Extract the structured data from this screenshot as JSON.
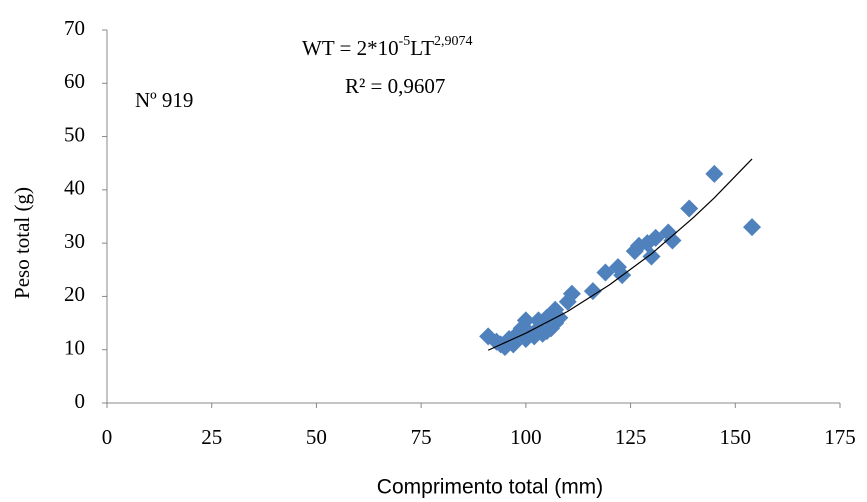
{
  "chart_data": {
    "type": "scatter",
    "annotations": {
      "equation": {
        "lhs": "WT = 2*10",
        "exp1": "-5",
        "mid": "LT",
        "exp2": "2,9074"
      },
      "r2": "R² = 0,9607",
      "sample": "Nº 919"
    },
    "xlabel": "Comprimento total (mm)",
    "ylabel": "Peso total (g)",
    "xlim": [
      0,
      175
    ],
    "xticks": [
      0,
      25,
      50,
      75,
      100,
      125,
      150,
      175
    ],
    "ylim": [
      0,
      70
    ],
    "yticks": [
      0,
      10,
      20,
      30,
      40,
      50,
      60,
      70
    ],
    "grid": false,
    "series": [
      {
        "color": "#4f81bd",
        "x": [
          91,
          93,
          94,
          95,
          96,
          97,
          98,
          99,
          100,
          100,
          101,
          102,
          103,
          103,
          104,
          105,
          105,
          106,
          107,
          107,
          108,
          110,
          111,
          116,
          119,
          122,
          123,
          126,
          127,
          129,
          130,
          131,
          134,
          135,
          139,
          145,
          154
        ],
        "values": [
          12.5,
          11.5,
          11,
          10.5,
          12,
          11,
          13,
          14,
          15.5,
          12,
          13,
          12.5,
          14,
          15.5,
          13,
          16,
          13.5,
          14,
          15,
          17.5,
          16,
          19,
          20.5,
          21,
          24.5,
          25.5,
          24,
          28.5,
          29.5,
          30,
          27.5,
          31,
          32,
          30.5,
          36.5,
          43,
          33
        ]
      }
    ],
    "trendline": {
      "color": "#000000",
      "x": [
        91,
        100,
        110,
        120,
        130,
        140,
        145,
        154
      ],
      "values": [
        9.9,
        13.1,
        17.2,
        22.2,
        28.0,
        34.8,
        38.5,
        45.8
      ]
    }
  }
}
